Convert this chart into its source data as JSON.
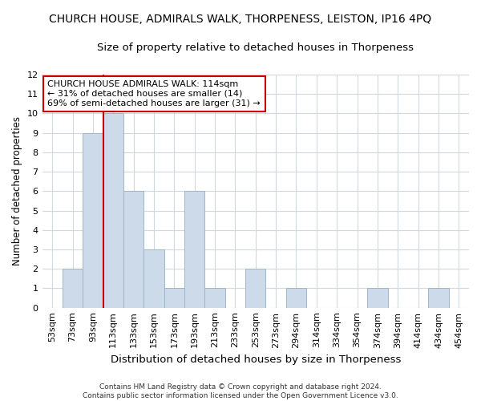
{
  "title": "CHURCH HOUSE, ADMIRALS WALK, THORPENESS, LEISTON, IP16 4PQ",
  "subtitle": "Size of property relative to detached houses in Thorpeness",
  "xlabel": "Distribution of detached houses by size in Thorpeness",
  "ylabel": "Number of detached properties",
  "categories": [
    "53sqm",
    "73sqm",
    "93sqm",
    "113sqm",
    "133sqm",
    "153sqm",
    "173sqm",
    "193sqm",
    "213sqm",
    "233sqm",
    "253sqm",
    "273sqm",
    "294sqm",
    "314sqm",
    "334sqm",
    "354sqm",
    "374sqm",
    "394sqm",
    "414sqm",
    "434sqm",
    "454sqm"
  ],
  "values": [
    0,
    2,
    9,
    10,
    6,
    3,
    1,
    6,
    1,
    0,
    2,
    0,
    1,
    0,
    0,
    0,
    1,
    0,
    0,
    1,
    0
  ],
  "bar_color": "#ccdaea",
  "bar_edge_color": "#9ab8cc",
  "vline_index": 3,
  "vline_color": "#cc0000",
  "ylim": [
    0,
    12
  ],
  "yticks": [
    0,
    1,
    2,
    3,
    4,
    5,
    6,
    7,
    8,
    9,
    10,
    11,
    12
  ],
  "annotation_line1": "CHURCH HOUSE ADMIRALS WALK: 114sqm",
  "annotation_line2": "← 31% of detached houses are smaller (14)",
  "annotation_line3": "69% of semi-detached houses are larger (31) →",
  "annotation_box_color": "#ffffff",
  "annotation_box_edge": "#cc0000",
  "footer_text": "Contains HM Land Registry data © Crown copyright and database right 2024.\nContains public sector information licensed under the Open Government Licence v3.0.",
  "bg_color": "#ffffff",
  "grid_color": "#d0d8e4",
  "title_fontsize": 10,
  "subtitle_fontsize": 9.5,
  "ylabel_fontsize": 8.5,
  "xlabel_fontsize": 9.5,
  "tick_fontsize": 8,
  "annot_fontsize": 8
}
